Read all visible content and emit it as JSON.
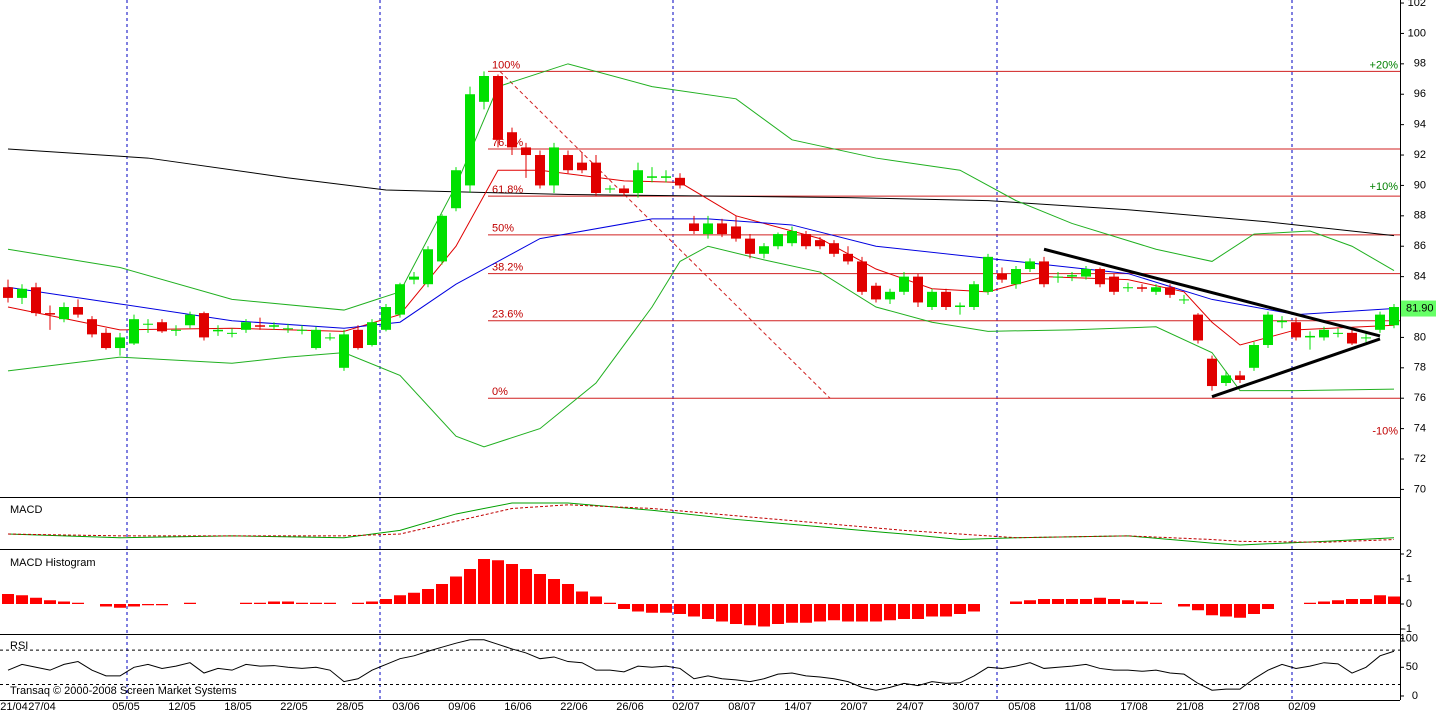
{
  "chart_data": {
    "type": "candlestick",
    "categories": [
      "21/04",
      null,
      "27/04",
      null,
      null,
      null,
      null,
      null,
      "05/05",
      null,
      null,
      null,
      "12/05",
      null,
      null,
      null,
      "18/05",
      null,
      null,
      null,
      "22/05",
      null,
      null,
      null,
      "28/05",
      null,
      null,
      null,
      "03/06",
      null,
      null,
      null,
      "09/06",
      null,
      null,
      null,
      "16/06",
      null,
      null,
      null,
      "22/06",
      null,
      null,
      null,
      "26/06",
      null,
      null,
      null,
      "02/07",
      null,
      null,
      null,
      "08/07",
      null,
      null,
      null,
      "14/07",
      null,
      null,
      null,
      "20/07",
      null,
      null,
      null,
      "24/07",
      null,
      null,
      null,
      "30/07",
      null,
      null,
      null,
      "05/08",
      null,
      null,
      null,
      "11/08",
      null,
      null,
      null,
      "17/08",
      null,
      null,
      null,
      "21/08",
      null,
      null,
      null,
      "27/08",
      null,
      null,
      null,
      "02/09",
      null,
      null,
      null,
      null,
      null,
      null,
      null
    ],
    "ohlc": [
      [
        83.3,
        83.8,
        82.3,
        82.6
      ],
      [
        82.6,
        83.5,
        82.2,
        83.2
      ],
      [
        83.3,
        83.6,
        81.4,
        81.6
      ],
      [
        81.6,
        82.1,
        80.5,
        81.5
      ],
      [
        81.2,
        82.3,
        81,
        82
      ],
      [
        82,
        82.5,
        81.3,
        81.5
      ],
      [
        81.2,
        81.4,
        80,
        80.2
      ],
      [
        80.3,
        80.6,
        79.2,
        79.3
      ],
      [
        79.3,
        80.3,
        78.8,
        80
      ],
      [
        79.6,
        81.5,
        79.5,
        81.2
      ],
      [
        80.9,
        81.2,
        80.3,
        80.9
      ],
      [
        81,
        81.2,
        80.3,
        80.4
      ],
      [
        80.5,
        80.8,
        80.1,
        80.5
      ],
      [
        80.8,
        81.7,
        80.6,
        81.5
      ],
      [
        81.6,
        81.7,
        79.8,
        80
      ],
      [
        80.4,
        80.8,
        80.1,
        80.5
      ],
      [
        80.3,
        80.6,
        80,
        80.3
      ],
      [
        80.5,
        81.2,
        80.3,
        81
      ],
      [
        80.8,
        81.3,
        80.5,
        80.7
      ],
      [
        80.7,
        81,
        80.5,
        80.8
      ],
      [
        80.6,
        80.9,
        80.3,
        80.6
      ],
      [
        80.5,
        80.8,
        80.2,
        80.5
      ],
      [
        79.3,
        80.7,
        79.2,
        80.5
      ],
      [
        80,
        80.3,
        79.8,
        80
      ],
      [
        78,
        80.5,
        77.8,
        80.2
      ],
      [
        80.5,
        80.8,
        79.2,
        79.3
      ],
      [
        79.5,
        81.2,
        79.4,
        81
      ],
      [
        80.5,
        82.2,
        80.4,
        82
      ],
      [
        81.5,
        83.6,
        81.3,
        83.5
      ],
      [
        83.8,
        84.3,
        83.5,
        84
      ],
      [
        83.5,
        86,
        83.3,
        85.8
      ],
      [
        85,
        88.1,
        84.8,
        88
      ],
      [
        88.5,
        91.2,
        88.3,
        91
      ],
      [
        90,
        96.5,
        89.5,
        96
      ],
      [
        95.5,
        97.5,
        95,
        97.2
      ],
      [
        97.2,
        97.3,
        92.5,
        93
      ],
      [
        93.5,
        93.8,
        92,
        92.5
      ],
      [
        92.5,
        92.8,
        90.5,
        92
      ],
      [
        92,
        92.3,
        89.8,
        90
      ],
      [
        90,
        92.8,
        89.5,
        92.5
      ],
      [
        92,
        92.3,
        90.8,
        91
      ],
      [
        91.5,
        92.2,
        90.8,
        91
      ],
      [
        91.5,
        92,
        89.3,
        89.5
      ],
      [
        89.8,
        90,
        89.5,
        89.8
      ],
      [
        89.8,
        90,
        89.3,
        89.5
      ],
      [
        89.5,
        91.5,
        89.2,
        91
      ],
      [
        90.5,
        91.2,
        90.2,
        90.6
      ],
      [
        90.5,
        91,
        90.2,
        90.6
      ],
      [
        90.5,
        90.8,
        89.8,
        90
      ],
      [
        87.5,
        88,
        86.8,
        87
      ],
      [
        86.8,
        88,
        86.5,
        87.5
      ],
      [
        87.5,
        87.8,
        86.6,
        86.8
      ],
      [
        87.3,
        88,
        86.3,
        86.5
      ],
      [
        86.5,
        86.8,
        85.2,
        85.5
      ],
      [
        85.5,
        86.2,
        85.2,
        86
      ],
      [
        86,
        86.9,
        85.8,
        86.8
      ],
      [
        86.2,
        87.3,
        86,
        87
      ],
      [
        86.8,
        87,
        85.8,
        86
      ],
      [
        86.4,
        86.6,
        85.8,
        86
      ],
      [
        86.2,
        86.4,
        85.3,
        85.5
      ],
      [
        85.5,
        86,
        84.8,
        85
      ],
      [
        85,
        85.3,
        82.8,
        83
      ],
      [
        83.4,
        83.6,
        82.3,
        82.5
      ],
      [
        82.5,
        83.2,
        82.2,
        83
      ],
      [
        83,
        84.3,
        82.8,
        84
      ],
      [
        84,
        84.2,
        82,
        82.3
      ],
      [
        82,
        83.2,
        81.8,
        83
      ],
      [
        83,
        83.2,
        81.8,
        82
      ],
      [
        82,
        82.3,
        81.5,
        82.1
      ],
      [
        82,
        83.7,
        81.8,
        83.5
      ],
      [
        83,
        85.5,
        82.8,
        85.3
      ],
      [
        84.2,
        84.6,
        83.6,
        83.8
      ],
      [
        83.5,
        84.7,
        83.2,
        84.5
      ],
      [
        84.5,
        85.2,
        84.3,
        85
      ],
      [
        85,
        85.3,
        83.3,
        83.5
      ],
      [
        84,
        84.3,
        83.6,
        84
      ],
      [
        84,
        84.3,
        83.7,
        84.1
      ],
      [
        84,
        84.7,
        83.8,
        84.5
      ],
      [
        84.5,
        84.6,
        83.3,
        83.5
      ],
      [
        84,
        84.2,
        82.8,
        83
      ],
      [
        83.3,
        83.6,
        83,
        83.3
      ],
      [
        83.3,
        83.5,
        83,
        83.2
      ],
      [
        83,
        83.5,
        82.8,
        83.3
      ],
      [
        83.3,
        83.5,
        82.6,
        82.8
      ],
      [
        82.5,
        82.8,
        82.2,
        82.5
      ],
      [
        81.5,
        81.6,
        79.6,
        79.8
      ],
      [
        78.6,
        78.8,
        76.5,
        76.8
      ],
      [
        77,
        77.8,
        76.8,
        77.5
      ],
      [
        77.5,
        77.8,
        77,
        77.2
      ],
      [
        78,
        79.7,
        77.8,
        79.5
      ],
      [
        79.5,
        81.7,
        79.3,
        81.5
      ],
      [
        81,
        81.4,
        80.6,
        81.1
      ],
      [
        81,
        81.3,
        79.8,
        80
      ],
      [
        80,
        80.4,
        79.2,
        80.1
      ],
      [
        80,
        80.7,
        79.8,
        80.5
      ],
      [
        80.3,
        80.6,
        80,
        80.3
      ],
      [
        80.3,
        80.5,
        79.5,
        79.6
      ],
      [
        80,
        80.3,
        79.7,
        80
      ],
      [
        80.5,
        81.7,
        80.3,
        81.5
      ],
      [
        80.8,
        82.2,
        80.6,
        82
      ]
    ],
    "up_color": "#00e000",
    "down_color": "#e00000",
    "ylim": [
      69.5,
      102.2
    ],
    "yticks": [
      70,
      72,
      74,
      76,
      78,
      80,
      82,
      84,
      86,
      88,
      90,
      92,
      94,
      96,
      98,
      100,
      102
    ],
    "fib_levels": [
      {
        "label": "100%",
        "value": 97.5
      },
      {
        "label": "76.4%",
        "value": 92.4
      },
      {
        "label": "61.8%",
        "value": 89.3
      },
      {
        "label": "50%",
        "value": 86.75
      },
      {
        "label": "38.2%",
        "value": 84.2
      },
      {
        "label": "23.6%",
        "value": 81.1
      },
      {
        "label": "0%",
        "value": 76
      }
    ],
    "envelope_labels": [
      {
        "text": "+20%",
        "level": 97.9,
        "color": "#008000"
      },
      {
        "text": "+10%",
        "level": 89.9,
        "color": "#008000"
      },
      {
        "text": "-10%",
        "level": 73.8,
        "color": "#c00000"
      }
    ],
    "last_price": {
      "value": 81.9,
      "label": "81.90"
    },
    "overlays": [
      {
        "color": "#000000",
        "x": [
          0,
          10,
          20,
          27,
          40,
          60,
          70,
          80,
          90,
          99
        ],
        "values": [
          92.4,
          91.8,
          90.5,
          89.7,
          89.4,
          89.2,
          89,
          88.4,
          87.6,
          86.7
        ]
      },
      {
        "color": "#20b020",
        "x": [
          0,
          8,
          16,
          24,
          28,
          32,
          35,
          40,
          46,
          52,
          56,
          62,
          68,
          72,
          76,
          82,
          86,
          89,
          93,
          96,
          99
        ],
        "values": [
          85.8,
          84.6,
          82.5,
          81.8,
          83,
          90,
          96.5,
          98,
          96.5,
          95.7,
          93,
          91.8,
          91,
          89,
          87.5,
          85.8,
          85,
          86.8,
          87,
          86,
          84.4
        ]
      },
      {
        "color": "#20b020",
        "x": [
          0,
          8,
          16,
          20,
          24,
          28,
          32,
          34,
          38,
          42,
          46,
          48,
          50,
          54,
          58,
          62,
          66,
          70,
          76,
          82,
          86,
          88,
          92,
          99
        ],
        "values": [
          77.8,
          78.7,
          78.3,
          78.7,
          79,
          77.5,
          73.5,
          72.8,
          74,
          77,
          82,
          85,
          86,
          85.1,
          84.3,
          82,
          81,
          80.4,
          80.5,
          80.7,
          79,
          76.5,
          76.5,
          76.6
        ]
      },
      {
        "color": "#e00000",
        "x": [
          0,
          8,
          16,
          24,
          28,
          32,
          35,
          38,
          44,
          48,
          52,
          58,
          62,
          66,
          70,
          74,
          80,
          84,
          86,
          88,
          92,
          99
        ],
        "values": [
          82,
          80.5,
          80.6,
          80.4,
          81.5,
          86,
          91,
          91,
          90.3,
          90.2,
          88,
          86.5,
          84.5,
          83.2,
          83,
          84,
          83.8,
          83,
          81,
          79.5,
          80.5,
          80.8
        ]
      },
      {
        "color": "#0000e0",
        "x": [
          0,
          8,
          16,
          24,
          28,
          32,
          38,
          46,
          50,
          56,
          62,
          68,
          74,
          80,
          86,
          92,
          99
        ],
        "values": [
          83.3,
          82.2,
          81.1,
          80.6,
          81,
          83.5,
          86.5,
          87.8,
          87.8,
          87.4,
          86,
          85.4,
          84.8,
          84.2,
          82.5,
          81.5,
          81.9
        ]
      }
    ],
    "trendlines": [
      {
        "x": [
          74,
          98
        ],
        "values": [
          85.8,
          80.1
        ]
      },
      {
        "x": [
          86,
          98
        ],
        "values": [
          76.1,
          79.9
        ]
      }
    ],
    "macd": {
      "type": "line",
      "title": "MACD",
      "series": [
        {
          "color": "#00a000",
          "dashed": false,
          "x": [
            0,
            8,
            16,
            24,
            28,
            32,
            36,
            40,
            46,
            52,
            58,
            64,
            68,
            72,
            80,
            86,
            88,
            94,
            99
          ],
          "values": [
            0.1,
            -0.1,
            0,
            -0.1,
            0.3,
            1.2,
            1.8,
            1.8,
            1.4,
            0.9,
            0.5,
            0.1,
            -0.2,
            -0.1,
            0,
            -0.4,
            -0.5,
            -0.3,
            -0.1
          ]
        },
        {
          "color": "#c00000",
          "dashed": true,
          "x": [
            0,
            8,
            16,
            24,
            28,
            32,
            36,
            40,
            46,
            52,
            58,
            64,
            68,
            72,
            80,
            86,
            88,
            94,
            99
          ],
          "values": [
            0.1,
            0,
            0,
            0,
            0.1,
            0.8,
            1.5,
            1.7,
            1.5,
            1.1,
            0.7,
            0.3,
            0.1,
            -0.1,
            0,
            -0.2,
            -0.3,
            -0.35,
            -0.2
          ]
        }
      ]
    },
    "histogram": {
      "type": "bar",
      "title": "MACD Histogram",
      "color": "#ff0000",
      "ylim": [
        -1.2,
        2.2
      ],
      "yticks": [
        2,
        1,
        0,
        -1
      ],
      "values": [
        0.4,
        0.35,
        0.25,
        0.15,
        0.1,
        0.05,
        0,
        -0.1,
        -0.15,
        -0.1,
        -0.05,
        -0.05,
        0,
        0.05,
        0,
        0,
        0,
        0.05,
        0.05,
        0.1,
        0.1,
        0.05,
        0.05,
        0.05,
        0,
        0.05,
        0.1,
        0.2,
        0.35,
        0.45,
        0.6,
        0.8,
        1.1,
        1.4,
        1.8,
        1.75,
        1.6,
        1.4,
        1.2,
        1,
        0.8,
        0.5,
        0.3,
        0.05,
        -0.2,
        -0.3,
        -0.35,
        -0.35,
        -0.4,
        -0.5,
        -0.6,
        -0.7,
        -0.8,
        -0.85,
        -0.9,
        -0.8,
        -0.75,
        -0.75,
        -0.7,
        -0.65,
        -0.7,
        -0.7,
        -0.7,
        -0.65,
        -0.6,
        -0.6,
        -0.5,
        -0.5,
        -0.4,
        -0.3,
        0,
        0,
        0.1,
        0.15,
        0.2,
        0.2,
        0.2,
        0.2,
        0.25,
        0.2,
        0.15,
        0.1,
        0.05,
        0,
        -0.1,
        -0.25,
        -0.45,
        -0.5,
        -0.55,
        -0.4,
        -0.2,
        0,
        0,
        0.05,
        0.1,
        0.15,
        0.2,
        0.2,
        0.35,
        0.3
      ]
    },
    "rsi": {
      "type": "line",
      "title": "RSI",
      "color": "#000000",
      "ylim": [
        -7,
        108
      ],
      "yticks": [
        0,
        50,
        100
      ],
      "levels": [
        20,
        80
      ],
      "values": [
        45,
        55,
        50,
        45,
        55,
        60,
        45,
        35,
        35,
        50,
        55,
        48,
        52,
        58,
        40,
        48,
        45,
        55,
        52,
        53,
        50,
        48,
        50,
        45,
        25,
        30,
        45,
        55,
        65,
        70,
        78,
        85,
        92,
        98,
        98,
        90,
        82,
        75,
        65,
        68,
        60,
        58,
        45,
        45,
        42,
        52,
        50,
        52,
        48,
        30,
        35,
        30,
        28,
        25,
        30,
        38,
        40,
        35,
        33,
        30,
        25,
        15,
        10,
        15,
        22,
        18,
        25,
        22,
        23,
        35,
        50,
        48,
        52,
        58,
        48,
        50,
        52,
        55,
        48,
        45,
        45,
        43,
        45,
        40,
        38,
        22,
        10,
        12,
        12,
        30,
        45,
        55,
        48,
        52,
        58,
        56,
        40,
        50,
        70,
        78
      ]
    },
    "footer": "Transaq © 2000-2008 Screen Market Systems"
  }
}
